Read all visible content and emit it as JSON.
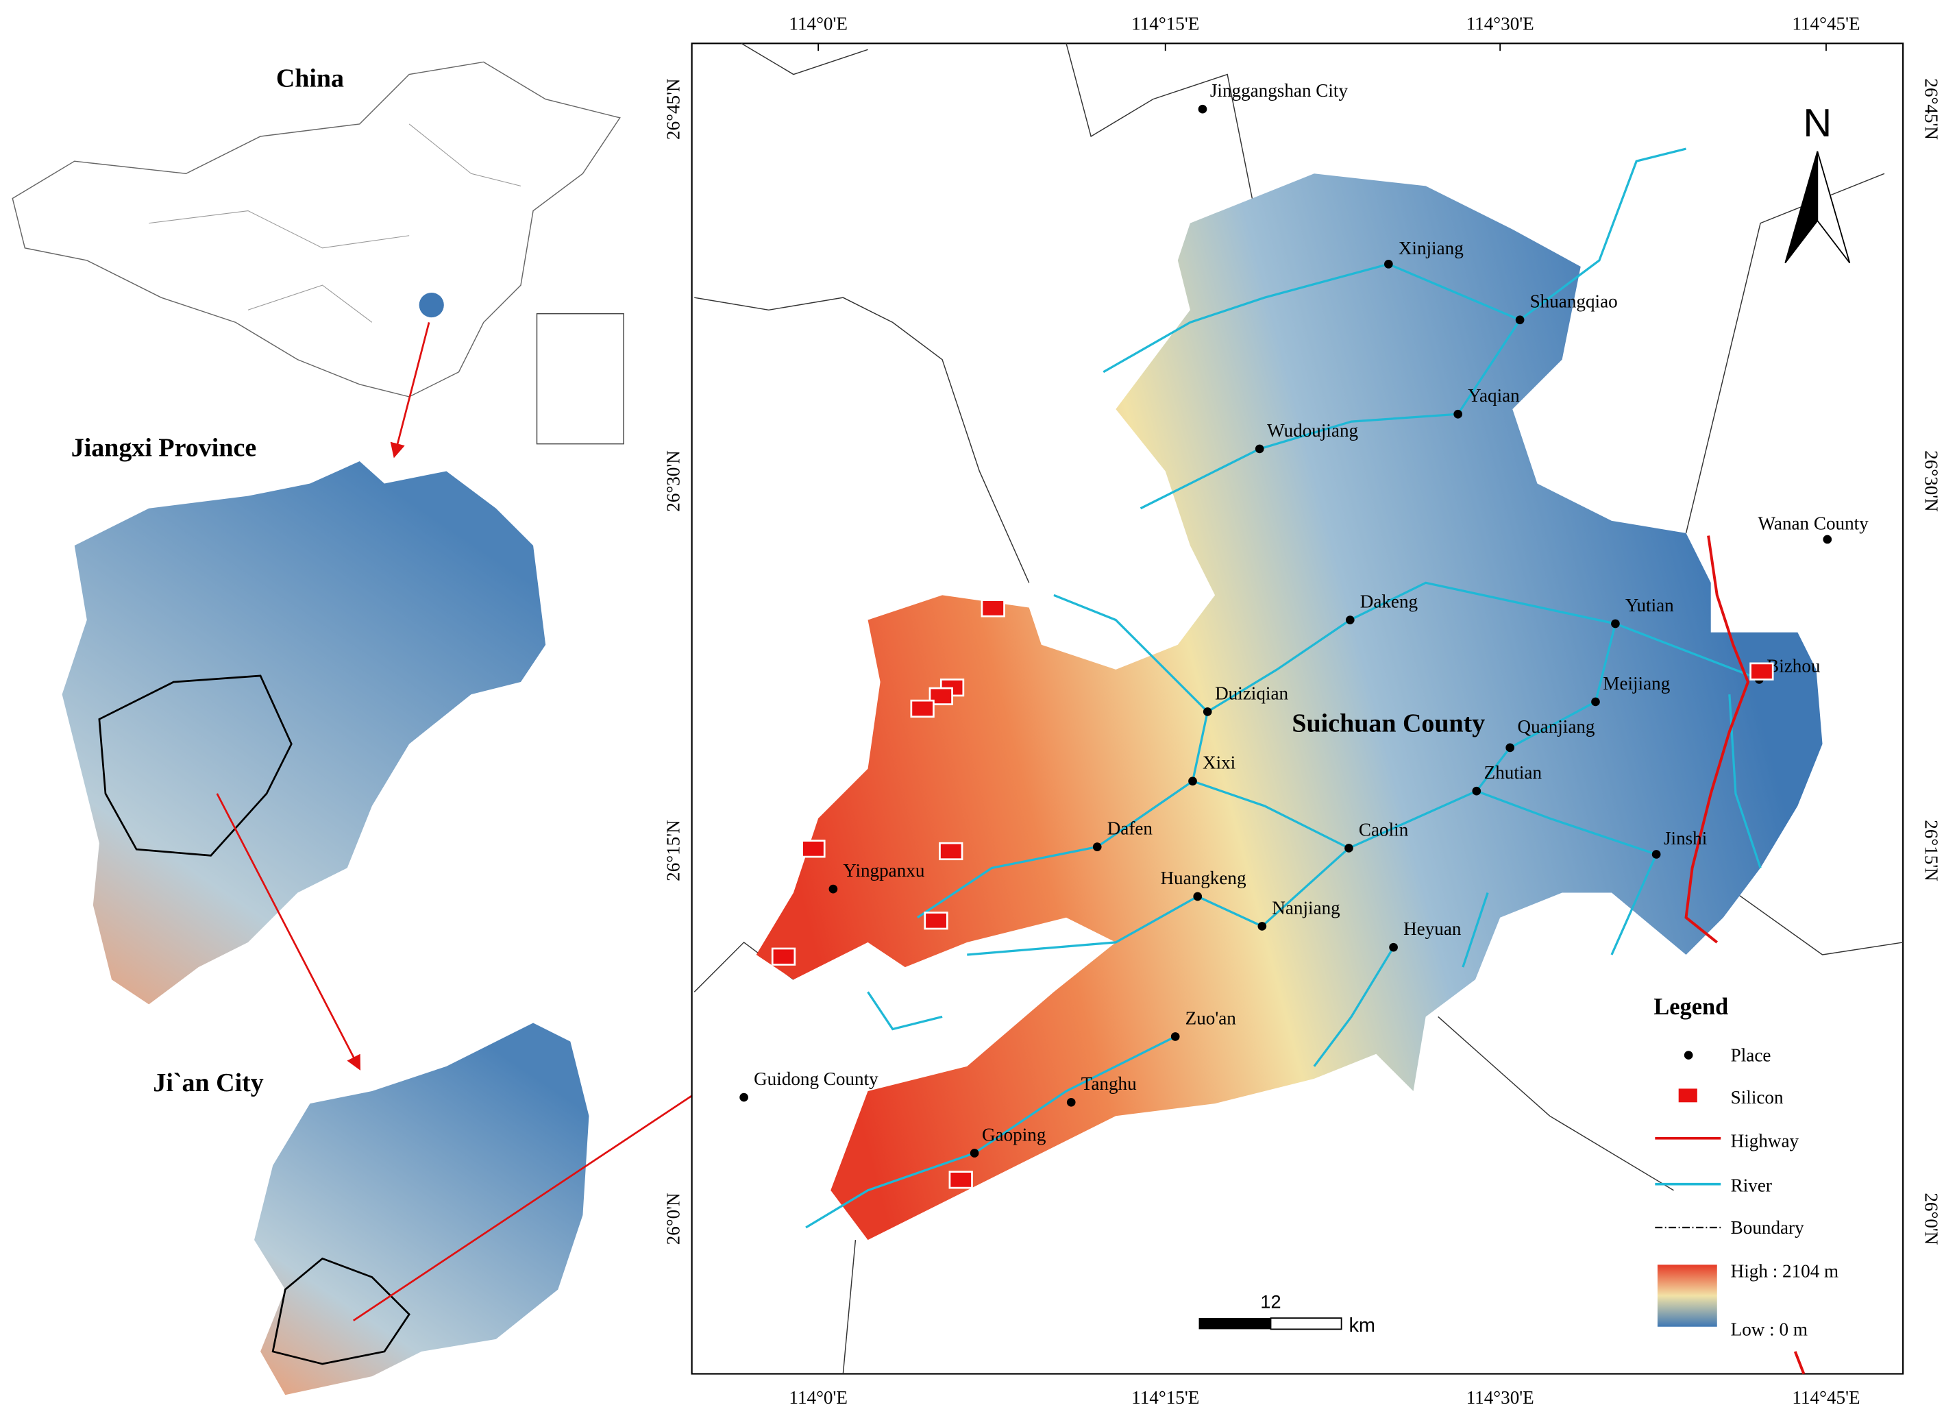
{
  "insets": {
    "china": "China",
    "jiangxi": "Jiangxi Province",
    "jian": "Ji`an City"
  },
  "map": {
    "north": "N",
    "county": "Suichuan County",
    "lon_labels": [
      "114°0'E",
      "114°15'E",
      "114°30'E",
      "114°45'E"
    ],
    "lat_labels": [
      "26°45'N",
      "26°30'N",
      "26°15'N",
      "26°0'N"
    ],
    "places": [
      "Jinggangshan City",
      "Xinjiang",
      "Shuangqiao",
      "Yaqian",
      "Wudoujiang",
      "Wanan County",
      "Dakeng",
      "Yutian",
      "Bizhou",
      "Meijiang",
      "Duiziqian",
      "Quanjiang",
      "Zhutian",
      "Xixi",
      "Dafen",
      "Caolin",
      "Jinshi",
      "Yingpanxu",
      "Huangkeng",
      "Nanjiang",
      "Heyuan",
      "Zuo'an",
      "Guidong County",
      "Tanghu",
      "Gaoping"
    ],
    "scale_bar": {
      "value": "12",
      "unit": "km"
    }
  },
  "legend": {
    "title": "Legend",
    "items": [
      "Place",
      "Silicon",
      "Highway",
      "River",
      "Boundary"
    ],
    "high": "High : 2104 m",
    "low": "Low : 0 m"
  }
}
